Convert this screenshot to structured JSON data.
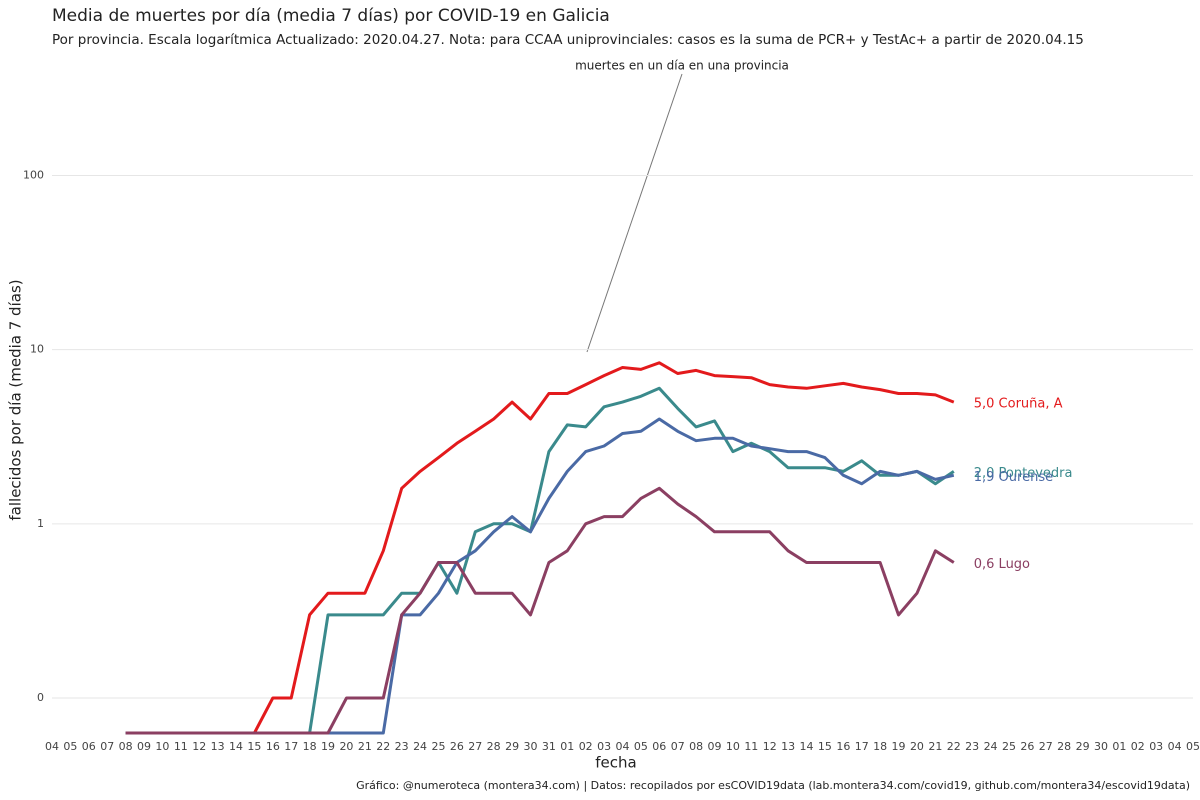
{
  "chart_data": {
    "type": "line",
    "title": "Media de muertes por día (media 7 días) por COVID-19 en Galicia",
    "subtitle": "Por provincia. Escala logarítmica  Actualizado: 2020.04.27. Nota: para CCAA uniprovinciales: casos es la suma de PCR+ y TestAc+ a partir de 2020.04.15",
    "x_label": "fecha",
    "y_label": "fallecidos por día (media 7 días)",
    "annotation": "muertes en un día en una provincia",
    "caption": "Gráfico: @numeroteca (montera34.com) | Datos: recopilados por esCOVID19data (lab.montera34.com/covid19, github.com/montera34/escovid19data)",
    "categories": [
      "04",
      "05",
      "06",
      "07",
      "08",
      "09",
      "10",
      "11",
      "12",
      "13",
      "14",
      "15",
      "16",
      "17",
      "18",
      "19",
      "20",
      "21",
      "22",
      "23",
      "24",
      "25",
      "26",
      "27",
      "28",
      "29",
      "30",
      "31",
      "01",
      "02",
      "03",
      "04",
      "05",
      "06",
      "07",
      "08",
      "09",
      "10",
      "11",
      "12",
      "13",
      "14",
      "15",
      "16",
      "17",
      "18",
      "19",
      "20",
      "21",
      "22",
      "23",
      "24",
      "25",
      "26",
      "27",
      "28",
      "29",
      "30",
      "01",
      "02",
      "03",
      "04",
      "05"
    ],
    "log_scale": true,
    "grid": true,
    "ylim": [
      0.063,
      460
    ],
    "yticks": [
      {
        "value": 0.1,
        "label": "0"
      },
      1,
      10,
      100
    ],
    "series": [
      {
        "name": "Coruña, A",
        "label": "5,0 Coruña, A",
        "color": "#e31a1c",
        "values": [
          null,
          null,
          null,
          null,
          0,
          0,
          0,
          0,
          0,
          0,
          0,
          0,
          0.1,
          0.1,
          0.3,
          0.4,
          0.4,
          0.4,
          0.7,
          1.6,
          2.0,
          2.4,
          2.9,
          3.4,
          4.0,
          5.0,
          4.0,
          5.6,
          5.6,
          6.3,
          7.1,
          7.9,
          7.7,
          8.4,
          7.3,
          7.6,
          7.1,
          7.0,
          6.9,
          6.3,
          6.1,
          6.0,
          6.2,
          6.4,
          6.1,
          5.9,
          5.6,
          5.6,
          5.5,
          5.0,
          null,
          null,
          null,
          null,
          null,
          null,
          null,
          null,
          null,
          null,
          null,
          null,
          null
        ]
      },
      {
        "name": "Pontevedra",
        "label": "2,0 Pontevedra",
        "color": "#3a8a8c",
        "values": [
          null,
          null,
          null,
          null,
          0,
          0,
          0,
          0,
          0,
          0,
          0,
          0,
          0,
          0,
          0,
          0.3,
          0.3,
          0.3,
          0.3,
          0.4,
          0.4,
          0.6,
          0.4,
          0.9,
          1.0,
          1.0,
          0.9,
          2.6,
          3.7,
          3.6,
          4.7,
          5.0,
          5.4,
          6.0,
          4.6,
          3.6,
          3.9,
          2.6,
          2.9,
          2.6,
          2.1,
          2.1,
          2.1,
          2.0,
          2.3,
          1.9,
          1.9,
          2.0,
          1.7,
          2.0,
          null,
          null,
          null,
          null,
          null,
          null,
          null,
          null,
          null,
          null,
          null,
          null,
          null
        ]
      },
      {
        "name": "Ourense",
        "label": "1,9 Ourense",
        "color": "#4a6aa5",
        "values": [
          null,
          null,
          null,
          null,
          0,
          0,
          0,
          0,
          0,
          0,
          0,
          0,
          0,
          0,
          0,
          0,
          0,
          0,
          0,
          0.3,
          0.3,
          0.4,
          0.6,
          0.7,
          0.9,
          1.1,
          0.9,
          1.4,
          2.0,
          2.6,
          2.8,
          3.3,
          3.4,
          4.0,
          3.4,
          3.0,
          3.1,
          3.1,
          2.8,
          2.7,
          2.6,
          2.6,
          2.4,
          1.9,
          1.7,
          2.0,
          1.9,
          2.0,
          1.8,
          1.9,
          null,
          null,
          null,
          null,
          null,
          null,
          null,
          null,
          null,
          null,
          null,
          null,
          null
        ]
      },
      {
        "name": "Lugo",
        "label": "0,6 Lugo",
        "color": "#8b3f62",
        "values": [
          null,
          null,
          null,
          null,
          0,
          0,
          0,
          0,
          0,
          0,
          0,
          0,
          0,
          0,
          0,
          0,
          0.1,
          0.1,
          0.1,
          0.3,
          0.4,
          0.6,
          0.6,
          0.4,
          0.4,
          0.4,
          0.3,
          0.6,
          0.7,
          1.0,
          1.1,
          1.1,
          1.4,
          1.6,
          1.3,
          1.1,
          0.9,
          0.9,
          0.9,
          0.9,
          0.7,
          0.6,
          0.6,
          0.6,
          0.6,
          0.6,
          0.3,
          0.4,
          0.7,
          0.6,
          null,
          null,
          null,
          null,
          null,
          null,
          null,
          null,
          null,
          null,
          null,
          null,
          null
        ]
      }
    ]
  }
}
